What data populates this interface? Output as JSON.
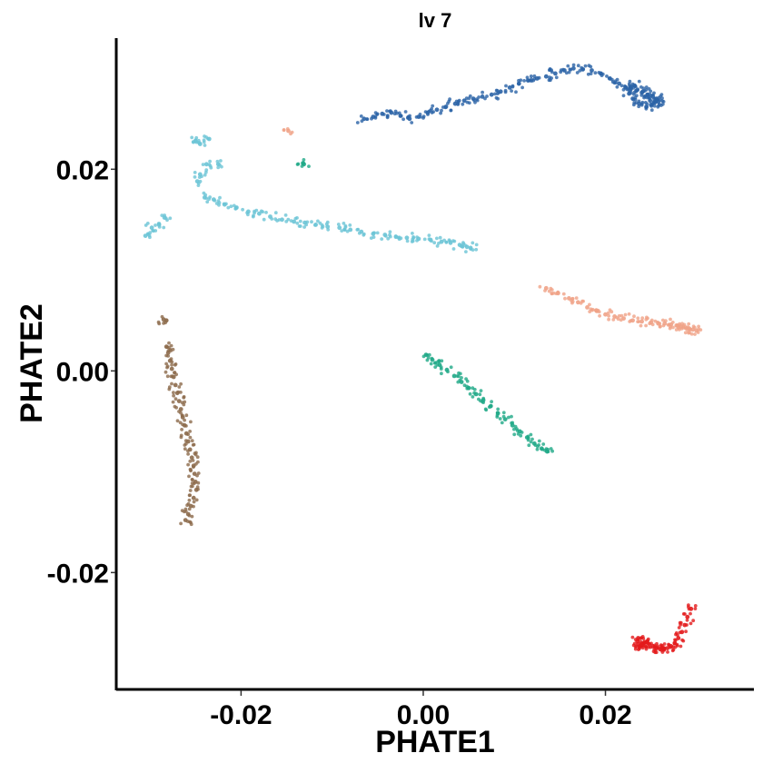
{
  "chart_data": {
    "type": "scatter",
    "title": "lv 7",
    "xlabel": "PHATE1",
    "ylabel": "PHATE2",
    "xlim": [
      -0.0335,
      0.0363
    ],
    "ylim": [
      -0.0315,
      0.033
    ],
    "x_ticks": [
      {
        "value": -0.02,
        "label": "-0.02"
      },
      {
        "value": 0.0,
        "label": "0.00"
      },
      {
        "value": 0.02,
        "label": "0.02"
      }
    ],
    "y_ticks": [
      {
        "value": -0.02,
        "label": "-0.02"
      },
      {
        "value": 0.0,
        "label": "0.00"
      },
      {
        "value": 0.02,
        "label": "0.02"
      }
    ],
    "grid": false,
    "legend": "none",
    "series": [
      {
        "color": "#2a63a6",
        "x": [
          -0.0065,
          -0.0055,
          -0.0045,
          -0.0035,
          -0.0025,
          -0.0015,
          -0.0005,
          0.0005,
          0.0015,
          0.0025,
          0.0035,
          0.0045,
          0.0055,
          0.0065,
          0.0075,
          0.0085,
          0.0095,
          0.0105,
          0.0115,
          0.0125,
          0.0135,
          0.0145,
          0.0155,
          0.0165,
          0.0175,
          0.0185,
          0.0195,
          0.0205,
          0.0215,
          0.0222,
          0.0228,
          0.0234,
          0.024,
          0.0246,
          0.0252,
          0.0256,
          0.0258,
          0.025,
          0.0245,
          0.0237,
          0.023,
          0.0226,
          0.0232,
          0.0241,
          0.0249,
          0.0254
        ],
        "y": [
          0.025,
          0.0252,
          0.0255,
          0.0256,
          0.0253,
          0.025,
          0.0252,
          0.0256,
          0.0259,
          0.0262,
          0.0265,
          0.0268,
          0.027,
          0.0272,
          0.0274,
          0.0277,
          0.0281,
          0.0285,
          0.0288,
          0.029,
          0.0292,
          0.0295,
          0.0298,
          0.03,
          0.0299,
          0.0298,
          0.0295,
          0.029,
          0.0285,
          0.0281,
          0.028,
          0.0278,
          0.0276,
          0.0274,
          0.0272,
          0.027,
          0.0267,
          0.0264,
          0.0262,
          0.0265,
          0.027,
          0.0275,
          0.0283,
          0.0277,
          0.0268,
          0.0266
        ]
      },
      {
        "color": "#6cc4d6",
        "x": [
          -0.0305,
          -0.0298,
          -0.029,
          -0.0284,
          -0.025,
          -0.0245,
          -0.0235,
          -0.0225,
          -0.0245,
          -0.0238,
          -0.0248,
          -0.024,
          -0.023,
          -0.0218,
          -0.0205,
          -0.0192,
          -0.018,
          -0.0168,
          -0.0155,
          -0.0142,
          -0.013,
          -0.0118,
          -0.0105,
          -0.0092,
          -0.008,
          -0.0068,
          -0.0055,
          -0.0042,
          -0.003,
          -0.0018,
          -0.0005,
          0.0008,
          0.002,
          0.003,
          0.004,
          0.0048,
          0.0052
        ],
        "y": [
          0.0134,
          0.0142,
          0.0145,
          0.0152,
          0.0228,
          0.0225,
          0.023,
          0.0205,
          0.0195,
          0.0205,
          0.0188,
          0.0172,
          0.017,
          0.0165,
          0.0162,
          0.0158,
          0.0156,
          0.0153,
          0.015,
          0.0148,
          0.0147,
          0.0145,
          0.0143,
          0.0142,
          0.014,
          0.0138,
          0.0136,
          0.0135,
          0.0133,
          0.0132,
          0.0131,
          0.013,
          0.0128,
          0.0127,
          0.0125,
          0.0123,
          0.0122
        ]
      },
      {
        "color": "#f0a287",
        "x": [
          -0.0148,
          0.0135,
          0.0148,
          0.016,
          0.017,
          0.018,
          0.019,
          0.02,
          0.021,
          0.022,
          0.023,
          0.024,
          0.025,
          0.0258,
          0.0265,
          0.0272,
          0.0278,
          0.0283,
          0.0288,
          0.0292,
          0.0296,
          0.03
        ],
        "y": [
          0.0238,
          0.0082,
          0.0077,
          0.0072,
          0.0068,
          0.0063,
          0.006,
          0.0056,
          0.0054,
          0.0052,
          0.005,
          0.0049,
          0.0048,
          0.0047,
          0.0047,
          0.0046,
          0.0045,
          0.0044,
          0.0043,
          0.0042,
          0.0041,
          0.004
        ]
      },
      {
        "color": "#1fa987",
        "x": [
          -0.0131,
          0.0003,
          0.001,
          0.0018,
          0.0026,
          0.0034,
          0.0042,
          0.005,
          0.0058,
          0.0066,
          0.0074,
          0.0082,
          0.009,
          0.0098,
          0.0106,
          0.0114,
          0.0122,
          0.013,
          0.0136
        ],
        "y": [
          0.0205,
          0.0016,
          0.0011,
          0.0006,
          0.0001,
          -0.0005,
          -0.0011,
          -0.0017,
          -0.0023,
          -0.0029,
          -0.0035,
          -0.0042,
          -0.0048,
          -0.0054,
          -0.006,
          -0.0066,
          -0.0072,
          -0.0077,
          -0.008
        ]
      },
      {
        "color": "#8c6a4b",
        "x": [
          -0.0285,
          -0.0282,
          -0.028,
          -0.0278,
          -0.0276,
          -0.0274,
          -0.0272,
          -0.027,
          -0.0268,
          -0.0266,
          -0.0264,
          -0.0262,
          -0.026,
          -0.0258,
          -0.0256,
          -0.0254,
          -0.0252,
          -0.0251,
          -0.025,
          -0.0249,
          -0.0252,
          -0.0255,
          -0.0258,
          -0.0261
        ],
        "y": [
          0.0051,
          0.0024,
          0.0018,
          0.001,
          0.0002,
          -0.0006,
          -0.0014,
          -0.0022,
          -0.003,
          -0.0038,
          -0.0046,
          -0.0054,
          -0.0062,
          -0.007,
          -0.0078,
          -0.0086,
          -0.0094,
          -0.0102,
          -0.011,
          -0.0118,
          -0.0126,
          -0.0134,
          -0.0142,
          -0.0148
        ]
      },
      {
        "color": "#e31a1c",
        "x": [
          0.0294,
          0.029,
          0.0287,
          0.0284,
          0.028,
          0.0276,
          0.0272,
          0.0268,
          0.0264,
          0.026,
          0.0256,
          0.0252,
          0.0248,
          0.0245,
          0.0242,
          0.024,
          0.0238,
          0.0236,
          0.0235,
          0.0236
        ],
        "y": [
          -0.0236,
          -0.0244,
          -0.0252,
          -0.0259,
          -0.0265,
          -0.027,
          -0.0273,
          -0.0275,
          -0.0276,
          -0.0276,
          -0.0275,
          -0.0273,
          -0.0271,
          -0.0269,
          -0.027,
          -0.0272,
          -0.0273,
          -0.0271,
          -0.0268,
          -0.0265
        ]
      }
    ],
    "stray_points": [
      {
        "color": "#1fa987",
        "x": -0.0132,
        "y": 0.0206
      },
      {
        "color": "#8c6a4b",
        "x": -0.0282,
        "y": 0.005
      }
    ]
  }
}
